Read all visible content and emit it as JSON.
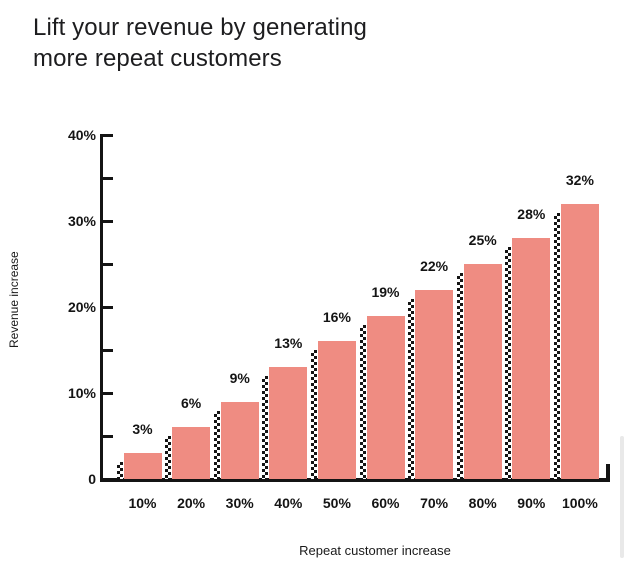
{
  "title": {
    "line1": "Lift your revenue by generating",
    "line2": "more repeat customers"
  },
  "chart_data": {
    "type": "bar",
    "title": "Lift your revenue by generating more repeat customers",
    "categories": [
      "10%",
      "20%",
      "30%",
      "40%",
      "50%",
      "60%",
      "70%",
      "80%",
      "90%",
      "100%"
    ],
    "values": [
      3,
      6,
      9,
      13,
      16,
      19,
      22,
      25,
      28,
      32
    ],
    "value_labels": [
      "3%",
      "6%",
      "9%",
      "13%",
      "16%",
      "19%",
      "22%",
      "25%",
      "28%",
      "32%"
    ],
    "xlabel": "Repeat customer increase",
    "ylabel": "Revenue increase",
    "ylim": [
      0,
      40
    ],
    "y_tick_labels": [
      {
        "value": 40,
        "label": "40%"
      },
      {
        "value": 30,
        "label": "30%"
      },
      {
        "value": 20,
        "label": "20%"
      },
      {
        "value": 10,
        "label": "10%"
      },
      {
        "value": 0,
        "label": "0"
      }
    ],
    "y_minor_tick_step": 5,
    "grid": false,
    "legend": false,
    "bar_color": "#ef8c82",
    "bar_pattern": "black-white-checkerboard strip on left edge of each bar",
    "axis_color": "#141414"
  }
}
